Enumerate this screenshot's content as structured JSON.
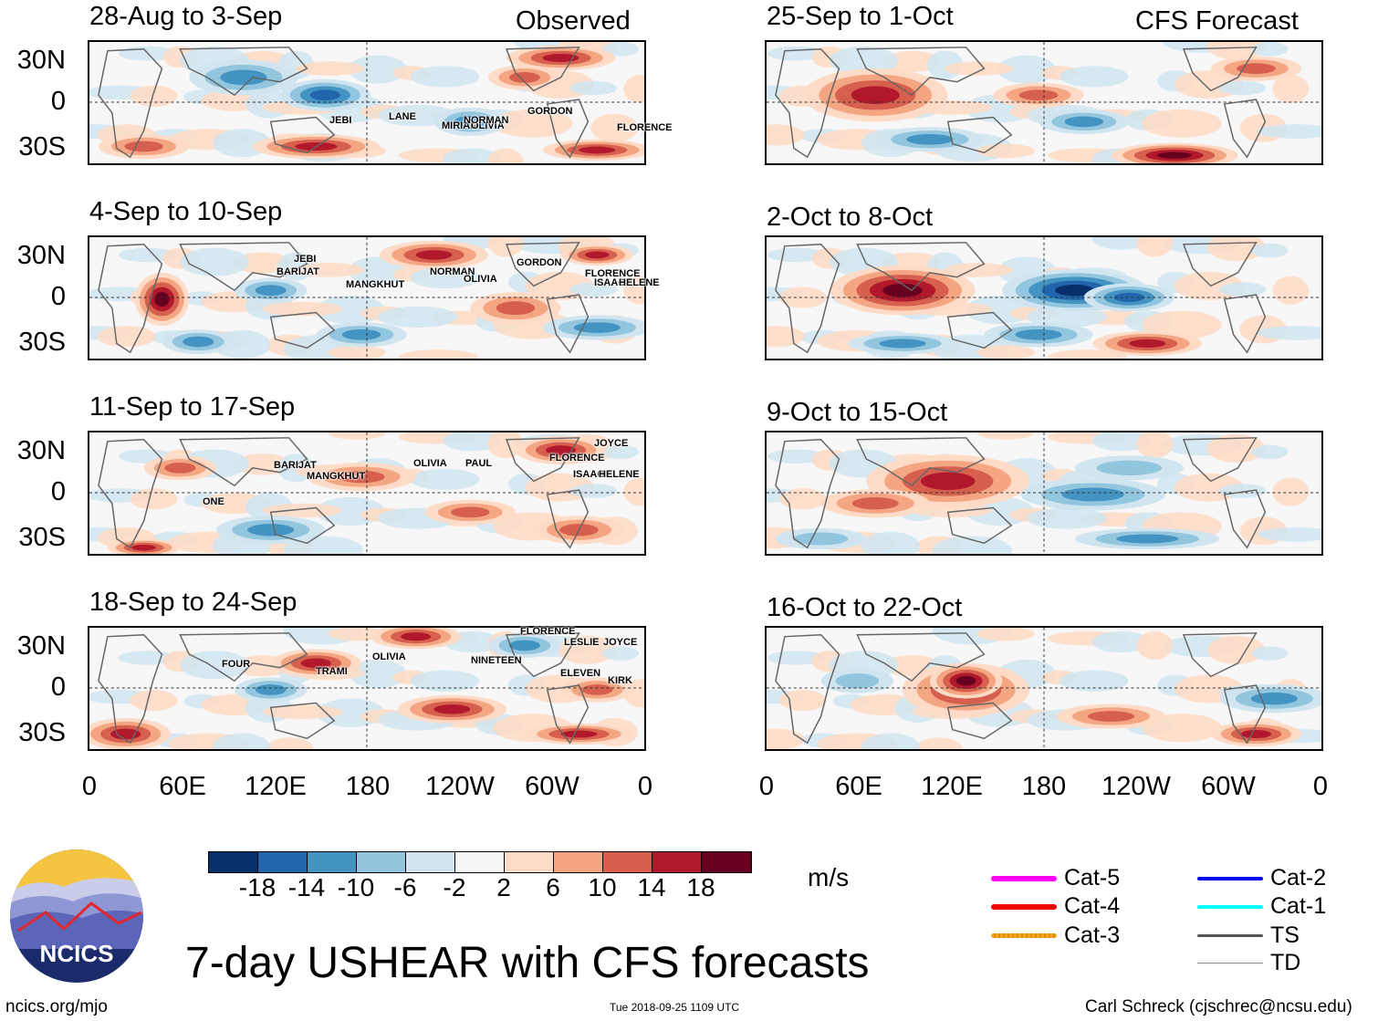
{
  "title": "7-day USHEAR with CFS forecasts",
  "units": "m/s",
  "observed_label": "Observed",
  "forecast_label": "CFS Forecast",
  "y_labels": [
    "30N",
    "0",
    "30S"
  ],
  "x_labels": [
    "0",
    "60E",
    "120E",
    "180",
    "120W",
    "60W",
    "0"
  ],
  "observed_panels": [
    {
      "title": "28-Aug to 3-Sep",
      "storms": [
        "JEBI",
        "LANE",
        "MIRIAM",
        "OLIVIA",
        "NORMAN",
        "GORDON",
        "FLORENCE"
      ]
    },
    {
      "title": "4-Sep to 10-Sep",
      "storms": [
        "JEBI",
        "BARIJAT",
        "MANGKHUT",
        "NORMAN",
        "OLIVIA",
        "GORDON",
        "FLORENCE",
        "ISAAC",
        "HELENE"
      ]
    },
    {
      "title": "11-Sep to 17-Sep",
      "storms": [
        "BARIJAT",
        "MANGKHUT",
        "OLIVIA",
        "PAUL",
        "JOYCE",
        "FLORENCE",
        "ISAAC",
        "HELENE",
        "ONE"
      ]
    },
    {
      "title": "18-Sep to 24-Sep",
      "storms": [
        "FOUR",
        "TRAMI",
        "OLIVIA",
        "NINETEEN",
        "FLORENCE",
        "LESLIE",
        "JOYCE",
        "ELEVEN",
        "KIRK"
      ]
    }
  ],
  "forecast_panels": [
    {
      "title": "25-Sep to 1-Oct"
    },
    {
      "title": "2-Oct to 8-Oct"
    },
    {
      "title": "9-Oct to 15-Oct"
    },
    {
      "title": "16-Oct to 22-Oct"
    }
  ],
  "colorbar": {
    "colors": [
      "#08306b",
      "#2166ac",
      "#4393c3",
      "#92c5de",
      "#d1e5f0",
      "#f7f7f7",
      "#fddbc7",
      "#f4a582",
      "#d6604d",
      "#b2182b",
      "#67001f"
    ],
    "ticks": [
      "-18",
      "-14",
      "-10",
      "-6",
      "-2",
      "2",
      "6",
      "10",
      "14",
      "18"
    ]
  },
  "legend": [
    {
      "label": "Cat-5",
      "color": "#ff00ff"
    },
    {
      "label": "Cat-4",
      "color": "#ee0000"
    },
    {
      "label": "Cat-3",
      "color": "#f5a623"
    },
    {
      "label": "Cat-2",
      "color": "#0000ee"
    },
    {
      "label": "Cat-1",
      "color": "#00ffff"
    },
    {
      "label": "TS",
      "color": "#555555"
    },
    {
      "label": "TD",
      "color": "#888888"
    }
  ],
  "logo_text": "NCICS",
  "footer": {
    "left": "ncics.org/mjo",
    "center": "Tue 2018-09-25 1109 UTC",
    "right": "Carl Schreck (cjschrec@ncsu.edu)"
  }
}
